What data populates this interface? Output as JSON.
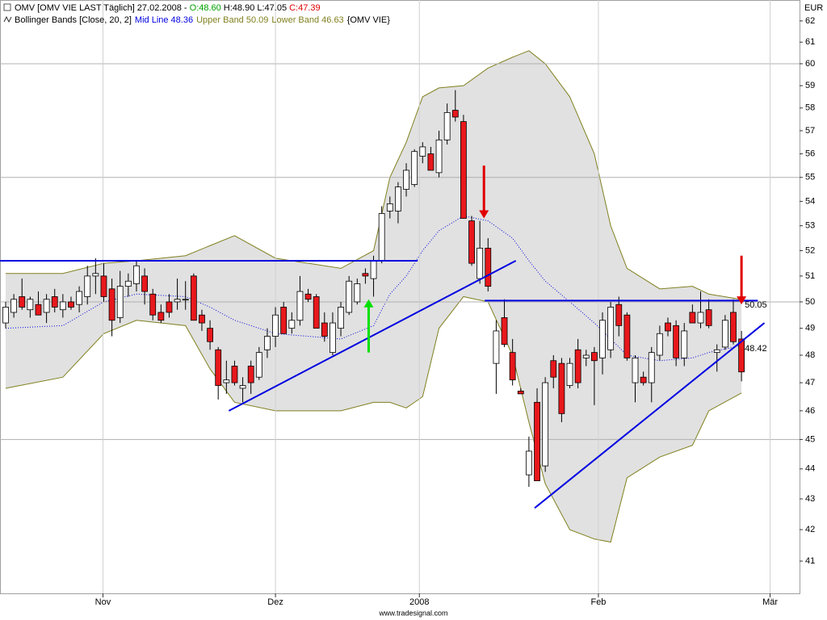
{
  "chart_data": {
    "type": "candlestick",
    "header": {
      "symbol": "OMV [OMV VIE LAST Täglich] 27.02.2008 - ",
      "open_text": "O:48.60",
      "hl_text": "H:48.90 L:47.05",
      "close_text": "C:47.39"
    },
    "indicator": {
      "name": "Bollinger Bands [Close, 20, 2]",
      "mid_text": "Mid Line 48.36",
      "upper_text": "Upper Band 50.09",
      "lower_text": "Lower Band 46.63",
      "source": "{OMV VIE}"
    },
    "currency": "EUR",
    "footer": "www.tradesignal.com",
    "log_scale": true,
    "ylim": [
      40.0,
      63.0
    ],
    "yticks": [
      41,
      42,
      43,
      44,
      45,
      46,
      47,
      48,
      49,
      50,
      51,
      52,
      53,
      54,
      55,
      56,
      57,
      58,
      59,
      60,
      61,
      62
    ],
    "ygrid": [
      45,
      50,
      55,
      60
    ],
    "xlim": [
      -0.69,
      97.1
    ],
    "xticks": [
      {
        "value": 11.9,
        "label": "Nov"
      },
      {
        "value": 33.0,
        "label": "Dez"
      },
      {
        "value": 50.6,
        "label": "2008"
      },
      {
        "value": 72.5,
        "label": "Feb"
      },
      {
        "value": 93.5,
        "label": "Mär"
      }
    ],
    "up_color": "#ffffff",
    "down_color": "#e8181c",
    "open": [
      49.2,
      49.6,
      50.2,
      49.7,
      49.9,
      49.6,
      50.2,
      49.7,
      50.0,
      49.9,
      50.2,
      51.0,
      51.0,
      50.5,
      49.4,
      50.6,
      50.7,
      51.0,
      50.3,
      49.6,
      50.0,
      50.0,
      50.1,
      51.0,
      49.5,
      49.0,
      48.2,
      47.0,
      47.6,
      46.8,
      47.6,
      47.2,
      48.2,
      48.7,
      49.8,
      49.0,
      49.3,
      50.3,
      50.2,
      49.2,
      48.1,
      49.0,
      49.6,
      50.0,
      51.1,
      50.9,
      51.6,
      53.6,
      53.6,
      54.5,
      54.7,
      55.9,
      56.0,
      55.2,
      56.6,
      57.9,
      57.4,
      53.2,
      50.9,
      52.1,
      47.7,
      49.4,
      48.1,
      46.7,
      43.8,
      46.3,
      44.1,
      47.8,
      47.7,
      46.9,
      48.2,
      47.9,
      48.1,
      47.9,
      48.2,
      49.9,
      49.5,
      47.0,
      47.2,
      47.0,
      48.0,
      49.2,
      49.1,
      47.9,
      49.6,
      49.2,
      49.7,
      48.1,
      48.3,
      49.6,
      48.6
    ],
    "high": [
      50.0,
      50.3,
      50.9,
      50.2,
      50.4,
      50.3,
      50.5,
      50.3,
      50.2,
      50.6,
      51.4,
      51.7,
      51.5,
      50.9,
      51.2,
      51.1,
      51.6,
      51.3,
      50.5,
      49.9,
      50.3,
      50.9,
      50.8,
      51.1,
      49.7,
      49.3,
      48.3,
      47.8,
      47.8,
      47.2,
      47.8,
      48.3,
      49.0,
      49.8,
      50.0,
      49.6,
      51.0,
      50.5,
      50.3,
      49.6,
      49.6,
      50.0,
      51.0,
      50.9,
      51.3,
      51.8,
      53.8,
      54.2,
      54.8,
      55.6,
      56.2,
      56.5,
      56.3,
      57.0,
      58.2,
      58.8,
      57.7,
      53.4,
      53.2,
      52.5,
      49.3,
      50.1,
      48.6,
      46.8,
      45.1,
      46.8,
      47.2,
      48.0,
      47.9,
      47.9,
      48.6,
      48.2,
      48.3,
      49.6,
      50.0,
      50.2,
      49.6,
      48.0,
      47.4,
      48.3,
      49.1,
      49.4,
      49.3,
      49.2,
      49.9,
      50.4,
      50.1,
      48.4,
      49.5,
      50.1,
      48.9
    ],
    "low": [
      49.0,
      49.4,
      49.7,
      49.4,
      49.5,
      49.2,
      49.6,
      49.4,
      49.7,
      49.6,
      49.9,
      50.3,
      50.0,
      48.7,
      49.2,
      50.2,
      50.4,
      49.9,
      49.3,
      49.2,
      49.4,
      49.7,
      49.7,
      49.3,
      48.9,
      48.2,
      46.4,
      46.6,
      46.9,
      46.3,
      46.6,
      47.1,
      47.9,
      48.3,
      48.8,
      48.8,
      49.1,
      50.0,
      49.0,
      48.5,
      48.0,
      48.7,
      49.5,
      49.9,
      50.7,
      50.2,
      51.5,
      53.3,
      53.1,
      54.2,
      54.6,
      55.6,
      55.3,
      55.0,
      56.4,
      57.4,
      53.3,
      51.4,
      50.7,
      50.4,
      46.6,
      48.3,
      46.9,
      46.6,
      43.4,
      43.6,
      43.9,
      46.8,
      45.6,
      46.8,
      46.8,
      47.6,
      46.2,
      47.3,
      47.9,
      48.7,
      47.8,
      46.3,
      46.9,
      46.3,
      47.8,
      48.7,
      47.6,
      47.6,
      49.2,
      49.0,
      49.0,
      47.4,
      48.2,
      48.4,
      47.05
    ],
    "close": [
      49.8,
      50.1,
      49.8,
      50.1,
      49.5,
      50.1,
      49.8,
      50.0,
      49.8,
      50.4,
      51.0,
      51.1,
      50.2,
      49.3,
      50.6,
      50.8,
      51.4,
      50.4,
      49.5,
      49.3,
      49.6,
      50.1,
      50.1,
      49.3,
      49.2,
      48.5,
      46.9,
      47.1,
      47.0,
      46.9,
      47.0,
      48.1,
      48.7,
      49.5,
      48.8,
      49.3,
      50.4,
      50.1,
      49.0,
      48.7,
      49.2,
      49.8,
      50.8,
      50.7,
      51.0,
      51.6,
      53.5,
      53.9,
      54.6,
      55.3,
      56.1,
      56.3,
      55.3,
      56.6,
      57.8,
      57.6,
      53.3,
      51.5,
      52.1,
      50.6,
      48.9,
      48.4,
      47.1,
      46.6,
      44.6,
      43.6,
      47.0,
      47.2,
      45.9,
      47.7,
      47.0,
      48.0,
      47.8,
      49.3,
      49.8,
      49.1,
      47.9,
      47.9,
      47.0,
      48.1,
      48.8,
      48.9,
      47.9,
      48.9,
      49.2,
      49.6,
      49.1,
      48.2,
      49.3,
      48.5,
      47.39
    ],
    "band": {
      "x": [
        0,
        7,
        12,
        16,
        22,
        25,
        28,
        33,
        41,
        45,
        47,
        49,
        51,
        53,
        56,
        59,
        62,
        64,
        66,
        69,
        72,
        74,
        76,
        80,
        84,
        86,
        90
      ],
      "upper": [
        51.1,
        51.1,
        51.5,
        51.6,
        51.8,
        52.2,
        52.6,
        51.7,
        51.3,
        52.0,
        55.0,
        56.5,
        58.5,
        58.9,
        59.0,
        59.8,
        60.3,
        60.6,
        60.0,
        58.5,
        56.0,
        53.0,
        51.3,
        50.5,
        50.6,
        50.3,
        50.09
      ],
      "lower": [
        46.8,
        47.2,
        48.8,
        49.3,
        49.1,
        47.5,
        46.3,
        46.0,
        46.0,
        46.3,
        46.3,
        46.1,
        46.5,
        49.0,
        50.2,
        50.0,
        48.0,
        45.6,
        43.5,
        42.0,
        41.7,
        41.6,
        43.7,
        44.4,
        44.8,
        46.0,
        46.63
      ],
      "mid": [
        49.0,
        49.1,
        50.0,
        50.3,
        50.2,
        49.8,
        49.3,
        48.8,
        48.6,
        49.1,
        50.3,
        51.0,
        52.0,
        52.8,
        53.4,
        53.2,
        52.5,
        51.6,
        50.8,
        50.0,
        49.2,
        48.6,
        48.0,
        47.8,
        47.9,
        48.1,
        48.36
      ],
      "fill": "#dcdcdc",
      "edge": "#808020",
      "mid_color": "#0000e0"
    },
    "lines": [
      {
        "x": [
          -0.69,
          50.4
        ],
        "y": [
          51.6,
          51.6
        ],
        "color": "#0000e0"
      },
      {
        "x": [
          27.3,
          62.4
        ],
        "y": [
          46.0,
          51.6
        ],
        "color": "#0000e0"
      },
      {
        "x": [
          58.6,
          92.0
        ],
        "y": [
          50.05,
          50.05
        ],
        "color": "#0000e0"
      },
      {
        "x": [
          64.7,
          92.8
        ],
        "y": [
          42.7,
          49.2
        ],
        "color": "#0000e0"
      }
    ],
    "arrows": [
      {
        "x": 44.4,
        "from": 48.1,
        "to": 50.1,
        "color": "#00e000"
      },
      {
        "x": 58.5,
        "from": 55.5,
        "to": 53.3,
        "color": "#e00000"
      },
      {
        "x": 90.0,
        "from": 51.8,
        "to": 49.9,
        "color": "#e00000"
      }
    ],
    "annotations": [
      {
        "value": 50.05,
        "label": "50.05"
      },
      {
        "value": 48.42,
        "label": "48.42"
      }
    ]
  }
}
